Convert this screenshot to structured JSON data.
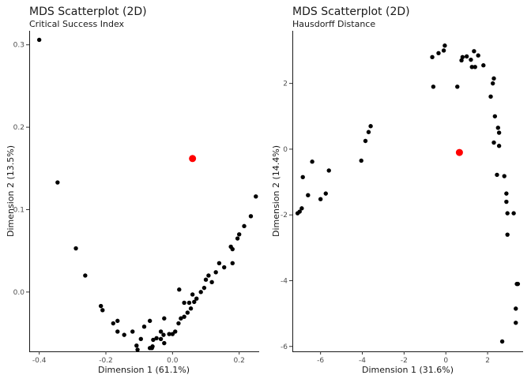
{
  "colors": {
    "point": "#000000",
    "highlight": "#ff0000"
  },
  "chart_data": [
    {
      "type": "scatter",
      "title": "MDS Scatterplot (2D)",
      "subtitle": "Critical Success Index",
      "xlabel": "Dimension 1 (61.1%)",
      "ylabel": "Dimension 2 (13.5%)",
      "xlim": [
        -0.43,
        0.26
      ],
      "ylim": [
        -0.072,
        0.317
      ],
      "xticks": [
        -0.4,
        -0.2,
        0.0,
        0.2
      ],
      "xtick_labels": [
        "-0.4",
        "-0.2",
        "0.0",
        "0.2"
      ],
      "yticks": [
        0.0,
        0.1,
        0.2,
        0.3
      ],
      "ytick_labels": [
        "0.0",
        "0.1",
        "0.2",
        "0.3"
      ],
      "points": [
        [
          -0.4,
          0.306
        ],
        [
          -0.345,
          0.133
        ],
        [
          -0.29,
          0.053
        ],
        [
          -0.262,
          0.02
        ],
        [
          -0.215,
          -0.017
        ],
        [
          -0.21,
          -0.022
        ],
        [
          -0.178,
          -0.038
        ],
        [
          -0.165,
          -0.035
        ],
        [
          -0.165,
          -0.048
        ],
        [
          -0.145,
          -0.052
        ],
        [
          -0.12,
          -0.048
        ],
        [
          -0.108,
          -0.065
        ],
        [
          -0.105,
          -0.07
        ],
        [
          -0.095,
          -0.057
        ],
        [
          -0.068,
          -0.068
        ],
        [
          -0.062,
          -0.068
        ],
        [
          -0.06,
          -0.066
        ],
        [
          -0.058,
          -0.058
        ],
        [
          -0.048,
          -0.056
        ],
        [
          -0.035,
          -0.048
        ],
        [
          -0.035,
          -0.057
        ],
        [
          -0.027,
          -0.052
        ],
        [
          -0.025,
          -0.062
        ],
        [
          -0.01,
          -0.051
        ],
        [
          0.0,
          -0.051
        ],
        [
          0.008,
          -0.048
        ],
        [
          -0.085,
          -0.042
        ],
        [
          -0.068,
          -0.035
        ],
        [
          -0.025,
          -0.032
        ],
        [
          0.018,
          -0.038
        ],
        [
          0.025,
          -0.032
        ],
        [
          0.035,
          -0.03
        ],
        [
          0.045,
          -0.025
        ],
        [
          0.055,
          -0.02
        ],
        [
          0.065,
          -0.012
        ],
        [
          0.072,
          -0.008
        ],
        [
          0.06,
          -0.003
        ],
        [
          0.05,
          -0.013
        ],
        [
          0.035,
          -0.013
        ],
        [
          0.02,
          0.003
        ],
        [
          0.085,
          0.0
        ],
        [
          0.095,
          0.005
        ],
        [
          0.1,
          0.015
        ],
        [
          0.118,
          0.012
        ],
        [
          0.108,
          0.02
        ],
        [
          0.13,
          0.024
        ],
        [
          0.14,
          0.035
        ],
        [
          0.155,
          0.03
        ],
        [
          0.175,
          0.055
        ],
        [
          0.18,
          0.052
        ],
        [
          0.18,
          0.035
        ],
        [
          0.195,
          0.065
        ],
        [
          0.2,
          0.07
        ],
        [
          0.215,
          0.08
        ],
        [
          0.235,
          0.092
        ],
        [
          0.25,
          0.116
        ]
      ],
      "highlight": [
        [
          0.06,
          0.162
        ]
      ]
    },
    {
      "type": "scatter",
      "title": "MDS Scatterplot (2D)",
      "subtitle": "Hausdorff Distance",
      "xlabel": "Dimension 1 (31.6%)",
      "ylabel": "Dimension 2 (14.4%)",
      "xlim": [
        -7.35,
        3.7
      ],
      "ylim": [
        -6.15,
        3.6
      ],
      "xticks": [
        -6,
        -4,
        -2,
        0,
        2
      ],
      "xtick_labels": [
        "-6",
        "-4",
        "-2",
        "0",
        "2"
      ],
      "yticks": [
        -6,
        -4,
        -2,
        0,
        2
      ],
      "ytick_labels": [
        "-6",
        "-4",
        "-2",
        "0",
        "2"
      ],
      "points": [
        [
          -7.1,
          -1.95
        ],
        [
          -7.0,
          -1.9
        ],
        [
          -6.9,
          -1.8
        ],
        [
          -6.85,
          -0.85
        ],
        [
          -6.6,
          -1.4
        ],
        [
          -6.4,
          -0.38
        ],
        [
          -6.0,
          -1.52
        ],
        [
          -5.75,
          -1.35
        ],
        [
          -5.6,
          -0.65
        ],
        [
          -4.05,
          -0.35
        ],
        [
          -3.85,
          0.25
        ],
        [
          -3.7,
          0.52
        ],
        [
          -3.6,
          0.7
        ],
        [
          -0.65,
          2.8
        ],
        [
          -0.6,
          1.9
        ],
        [
          -0.35,
          2.92
        ],
        [
          -0.1,
          3.0
        ],
        [
          -0.05,
          3.15
        ],
        [
          0.55,
          1.9
        ],
        [
          0.75,
          2.7
        ],
        [
          0.8,
          2.8
        ],
        [
          1.0,
          2.82
        ],
        [
          1.2,
          2.72
        ],
        [
          1.25,
          2.5
        ],
        [
          1.35,
          2.98
        ],
        [
          1.4,
          2.5
        ],
        [
          1.55,
          2.85
        ],
        [
          1.8,
          2.55
        ],
        [
          2.15,
          1.6
        ],
        [
          2.25,
          2.0
        ],
        [
          2.3,
          2.15
        ],
        [
          2.35,
          1.0
        ],
        [
          2.3,
          0.2
        ],
        [
          2.5,
          0.65
        ],
        [
          2.55,
          0.5
        ],
        [
          2.55,
          0.1
        ],
        [
          2.45,
          -0.78
        ],
        [
          2.8,
          -0.82
        ],
        [
          2.9,
          -1.35
        ],
        [
          2.9,
          -1.6
        ],
        [
          2.95,
          -1.95
        ],
        [
          2.95,
          -2.6
        ],
        [
          3.25,
          -1.95
        ],
        [
          3.4,
          -4.1
        ],
        [
          3.45,
          -4.1
        ],
        [
          3.35,
          -4.85
        ],
        [
          3.35,
          -5.28
        ],
        [
          2.7,
          -5.85
        ]
      ],
      "highlight": [
        [
          0.65,
          -0.1
        ]
      ]
    }
  ]
}
